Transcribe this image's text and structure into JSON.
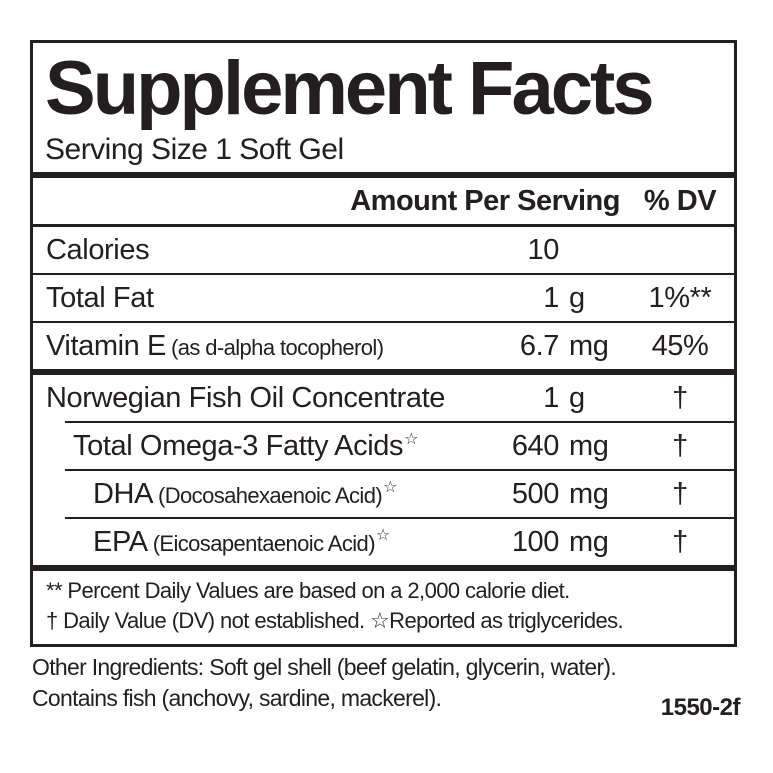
{
  "panel": {
    "title": "Supplement Facts",
    "serving_size": "Serving Size 1 Soft Gel",
    "columns": {
      "amount": "Amount Per Serving",
      "dv": "% DV"
    },
    "rows": [
      {
        "label": "Calories",
        "amount_num": "10",
        "amount_unit": "",
        "dv": ""
      },
      {
        "label": "Total Fat",
        "amount_num": "1",
        "amount_unit": "g",
        "dv": "1%**"
      },
      {
        "label": "Vitamin E",
        "label_note": "(as d-alpha tocopherol)",
        "amount_num": "6.7",
        "amount_unit": "mg",
        "dv": "45%"
      },
      {
        "label": "Norwegian Fish Oil Concentrate",
        "amount_num": "1",
        "amount_unit": "g",
        "dv": "†"
      },
      {
        "label": "Total Omega-3 Fatty Acids",
        "label_sup": "☆",
        "amount_num": "640",
        "amount_unit": "mg",
        "dv": "†"
      },
      {
        "label": "DHA",
        "label_note": "(Docosahexaenoic Acid)",
        "label_sup": "☆",
        "amount_num": "500",
        "amount_unit": "mg",
        "dv": "†"
      },
      {
        "label": "EPA",
        "label_note": "(Eicosapentaenoic Acid)",
        "label_sup": "☆",
        "amount_num": "100",
        "amount_unit": "mg",
        "dv": "†"
      }
    ],
    "footnotes": [
      "** Percent Daily Values are based on a 2,000 calorie diet.",
      "† Daily Value (DV) not established.  ☆Reported as triglycerides."
    ]
  },
  "below": {
    "other_ingredients": [
      "Other Ingredients: Soft gel shell (beef gelatin, glycerin, water).",
      "Contains fish (anchovy, sardine, mackerel)."
    ],
    "code": "1550-2f"
  },
  "colors": {
    "text": "#231f20",
    "background": "#ffffff"
  }
}
